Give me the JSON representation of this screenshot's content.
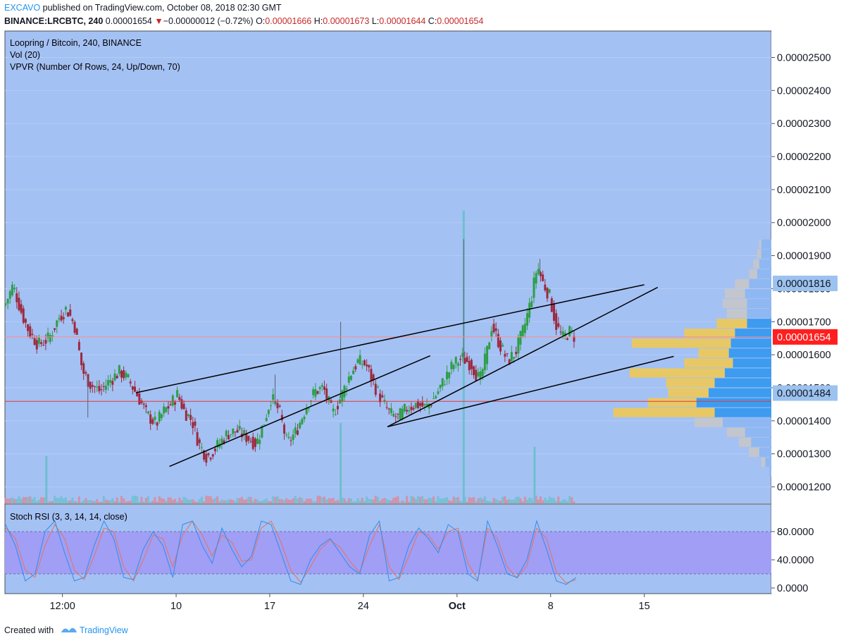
{
  "header": {
    "author": "EXCAVO",
    "published_text": "published on TradingView.com, October 08, 2018 02:30 GMT",
    "symbol": "BINANCE:LRCBTC, 240",
    "last_price": "0.00001654",
    "change_arrow": "▼",
    "change": "−0.00000012 (−0.72%)",
    "open_label": "O:",
    "open": "0.00001666",
    "high_label": "H:",
    "high": "0.00001673",
    "low_label": "L:",
    "low": "0.00001644",
    "close_label": "C:",
    "close": "0.00001654"
  },
  "legend": {
    "title": "Loopring / Bitcoin, 240, BINANCE",
    "vol": "Vol (20)",
    "vpvr": "VPVR (Number Of Rows, 24, Up/Down, 70)"
  },
  "stoch": {
    "label": "Stoch RSI (3, 3, 14, 14, close)"
  },
  "footer": {
    "created_with": "Created with",
    "brand": "TradingView"
  },
  "colors": {
    "chart_bg": "#a4c1f4",
    "stoch_band": "#a19ef5",
    "up_candle": "#2e9e46",
    "down_candle": "#9c2a3e",
    "price_badge": "#ff1f1f",
    "marker_badge": "#9cc2ef",
    "vpvr_up": "#3d9bf0",
    "vpvr_down": "#e8c865",
    "vpvr_up_va": "#8fb8f2",
    "vpvr_down_va": "#c3c6cc",
    "stoch_k": "#2f8de8",
    "stoch_d": "#e8725e"
  },
  "chart_data": {
    "type": "candlestick",
    "y_axis_ticks": [
      "0.00002500",
      "0.00002400",
      "0.00002300",
      "0.00002200",
      "0.00002100",
      "0.00002000",
      "0.00001900",
      "0.00001800",
      "0.00001700",
      "0.00001600",
      "0.00001500",
      "0.00001400",
      "0.00001300",
      "0.00001200"
    ],
    "y_tick_values": [
      2.5e-05,
      2.4e-05,
      2.3e-05,
      2.2e-05,
      2.1e-05,
      2e-05,
      1.9e-05,
      1.8e-05,
      1.7e-05,
      1.6e-05,
      1.5e-05,
      1.4e-05,
      1.3e-05,
      1.2e-05
    ],
    "ylim": [
      1.15e-05,
      2.58e-05
    ],
    "x_axis_ticks": [
      "12:00",
      "10",
      "17",
      "24",
      "Oct",
      "8",
      "15"
    ],
    "x_tick_days": [
      1.5,
      10,
      17,
      24,
      31,
      38,
      45
    ],
    "xlim_days": [
      -2.8,
      54.5
    ],
    "price_markers": [
      {
        "label": "0.00001816",
        "value": 1.816e-05,
        "style": "marker"
      },
      {
        "label": "0.00001654",
        "value": 1.654e-05,
        "style": "last"
      },
      {
        "label": "0.00001484",
        "value": 1.484e-05,
        "style": "marker"
      }
    ],
    "horizontal_lines": [
      {
        "value": 1.654e-05,
        "color": "#ff8888"
      },
      {
        "value": 1.459e-05,
        "color": "#e53935"
      }
    ],
    "trendlines": [
      [
        [
          7.0,
          1.485e-05
        ],
        [
          45.0,
          1.812e-05
        ]
      ],
      [
        [
          9.5,
          1.262e-05
        ],
        [
          29.0,
          1.597e-05
        ]
      ],
      [
        [
          25.8,
          1.382e-05
        ],
        [
          46.0,
          1.804e-05
        ]
      ],
      [
        [
          25.8,
          1.382e-05
        ],
        [
          47.2,
          1.595e-05
        ]
      ]
    ],
    "price_path": [
      [
        -2.8,
        1.75e-05
      ],
      [
        -2.2,
        1.81e-05
      ],
      [
        -1.5,
        1.72e-05
      ],
      [
        -1,
        1.67e-05
      ],
      [
        -0.3,
        1.63e-05
      ],
      [
        0.5,
        1.65e-05
      ],
      [
        1.2,
        1.71e-05
      ],
      [
        1.8,
        1.74e-05
      ],
      [
        2.4,
        1.69e-05
      ],
      [
        3.0,
        1.55e-05
      ],
      [
        3.6,
        1.51e-05
      ],
      [
        4.3,
        1.49e-05
      ],
      [
        5.0,
        1.52e-05
      ],
      [
        5.8,
        1.55e-05
      ],
      [
        6.5,
        1.52e-05
      ],
      [
        7.2,
        1.47e-05
      ],
      [
        7.8,
        1.42e-05
      ],
      [
        8.5,
        1.39e-05
      ],
      [
        9.1,
        1.43e-05
      ],
      [
        9.6,
        1.45e-05
      ],
      [
        10.1,
        1.48e-05
      ],
      [
        10.6,
        1.43e-05
      ],
      [
        11.2,
        1.4e-05
      ],
      [
        11.7,
        1.33e-05
      ],
      [
        12.3,
        1.29e-05
      ],
      [
        13.0,
        1.32e-05
      ],
      [
        13.8,
        1.36e-05
      ],
      [
        14.5,
        1.37e-05
      ],
      [
        15.3,
        1.35e-05
      ],
      [
        16.0,
        1.33e-05
      ],
      [
        16.6,
        1.4e-05
      ],
      [
        17.1,
        1.47e-05
      ],
      [
        17.7,
        1.43e-05
      ],
      [
        18.3,
        1.33e-05
      ],
      [
        19.0,
        1.37e-05
      ],
      [
        19.8,
        1.45e-05
      ],
      [
        20.4,
        1.49e-05
      ],
      [
        21.0,
        1.5e-05
      ],
      [
        21.7,
        1.42e-05
      ],
      [
        22.3,
        1.47e-05
      ],
      [
        23.0,
        1.54e-05
      ],
      [
        23.6,
        1.58e-05
      ],
      [
        24.2,
        1.57e-05
      ],
      [
        24.8,
        1.51e-05
      ],
      [
        25.4,
        1.46e-05
      ],
      [
        26.0,
        1.42e-05
      ],
      [
        26.6,
        1.41e-05
      ],
      [
        27.3,
        1.44e-05
      ],
      [
        28.0,
        1.45e-05
      ],
      [
        28.7,
        1.44e-05
      ],
      [
        29.3,
        1.47e-05
      ],
      [
        30.0,
        1.52e-05
      ],
      [
        30.7,
        1.57e-05
      ],
      [
        31.4,
        1.59e-05
      ],
      [
        32.1,
        1.57e-05
      ],
      [
        32.7,
        1.52e-05
      ],
      [
        33.2,
        1.6e-05
      ],
      [
        33.6,
        1.69e-05
      ],
      [
        34.2,
        1.63e-05
      ],
      [
        34.8,
        1.58e-05
      ],
      [
        35.4,
        1.61e-05
      ],
      [
        36.0,
        1.68e-05
      ],
      [
        36.5,
        1.76e-05
      ],
      [
        37.0,
        1.87e-05
      ],
      [
        37.4,
        1.82e-05
      ],
      [
        37.9,
        1.78e-05
      ],
      [
        38.4,
        1.69e-05
      ],
      [
        38.9,
        1.65e-05
      ],
      [
        39.4,
        1.67e-05
      ],
      [
        39.9,
        1.65e-05
      ]
    ],
    "volume_spikes": [
      {
        "day": 31.5,
        "height": 0.62
      },
      {
        "day": 22.3,
        "height": 0.17
      },
      {
        "day": 36.8,
        "height": 0.12
      },
      {
        "day": 0.3,
        "height": 0.1
      }
    ],
    "vpvr_rows": [
      {
        "price": 1.935e-05,
        "up": 0.1,
        "down": 0.02
      },
      {
        "price": 1.905e-05,
        "up": 0.1,
        "down": 0.04
      },
      {
        "price": 1.875e-05,
        "up": 0.12,
        "down": 0.06
      },
      {
        "price": 1.845e-05,
        "up": 0.14,
        "down": 0.08
      },
      {
        "price": 1.815e-05,
        "up": 0.22,
        "down": 0.14
      },
      {
        "price": 1.785e-05,
        "up": 0.26,
        "down": 0.2
      },
      {
        "price": 1.755e-05,
        "up": 0.24,
        "down": 0.24
      },
      {
        "price": 1.725e-05,
        "up": 0.24,
        "down": 0.2
      },
      {
        "price": 1.695e-05,
        "up": 0.24,
        "down": 0.3
      },
      {
        "price": 1.665e-05,
        "up": 0.36,
        "down": 0.5
      },
      {
        "price": 1.635e-05,
        "up": 0.4,
        "down": 0.98
      },
      {
        "price": 1.605e-05,
        "up": 0.42,
        "down": 0.3
      },
      {
        "price": 1.575e-05,
        "up": 0.38,
        "down": 0.48
      },
      {
        "price": 1.545e-05,
        "up": 0.46,
        "down": 0.94
      },
      {
        "price": 1.515e-05,
        "up": 0.56,
        "down": 0.48
      },
      {
        "price": 1.485e-05,
        "up": 0.62,
        "down": 0.4
      },
      {
        "price": 1.455e-05,
        "up": 0.74,
        "down": 0.48
      },
      {
        "price": 1.425e-05,
        "up": 0.56,
        "down": 1.0
      },
      {
        "price": 1.395e-05,
        "up": 0.48,
        "down": 0.28
      },
      {
        "price": 1.365e-05,
        "up": 0.26,
        "down": 0.18
      },
      {
        "price": 1.335e-05,
        "up": 0.2,
        "down": 0.12
      },
      {
        "price": 1.305e-05,
        "up": 0.12,
        "down": 0.1
      },
      {
        "price": 1.275e-05,
        "up": 0.06,
        "down": 0.04
      },
      {
        "price": 1.245e-05,
        "up": 0.02,
        "down": 0.0
      }
    ],
    "stoch_ticks": [
      "80.0000",
      "40.0000",
      "0.0000"
    ],
    "stoch_tick_values": [
      80,
      40,
      0
    ],
    "stoch_band": [
      20,
      80
    ],
    "stoch_k": [
      90,
      60,
      10,
      20,
      80,
      95,
      50,
      10,
      15,
      60,
      95,
      70,
      15,
      12,
      55,
      80,
      60,
      15,
      90,
      95,
      60,
      35,
      85,
      55,
      30,
      45,
      95,
      90,
      50,
      10,
      5,
      40,
      60,
      70,
      50,
      30,
      20,
      75,
      95,
      10,
      15,
      60,
      85,
      70,
      50,
      90,
      80,
      20,
      10,
      95,
      60,
      20,
      15,
      40,
      95,
      55,
      10,
      5,
      15
    ],
    "stoch_d": [
      85,
      70,
      25,
      15,
      60,
      90,
      70,
      25,
      12,
      45,
      85,
      80,
      30,
      10,
      40,
      75,
      70,
      30,
      75,
      95,
      75,
      45,
      75,
      65,
      38,
      40,
      85,
      95,
      65,
      25,
      8,
      30,
      55,
      68,
      58,
      38,
      22,
      60,
      90,
      30,
      12,
      45,
      80,
      75,
      55,
      80,
      85,
      35,
      12,
      85,
      70,
      30,
      14,
      32,
      85,
      70,
      22,
      7,
      12
    ]
  }
}
